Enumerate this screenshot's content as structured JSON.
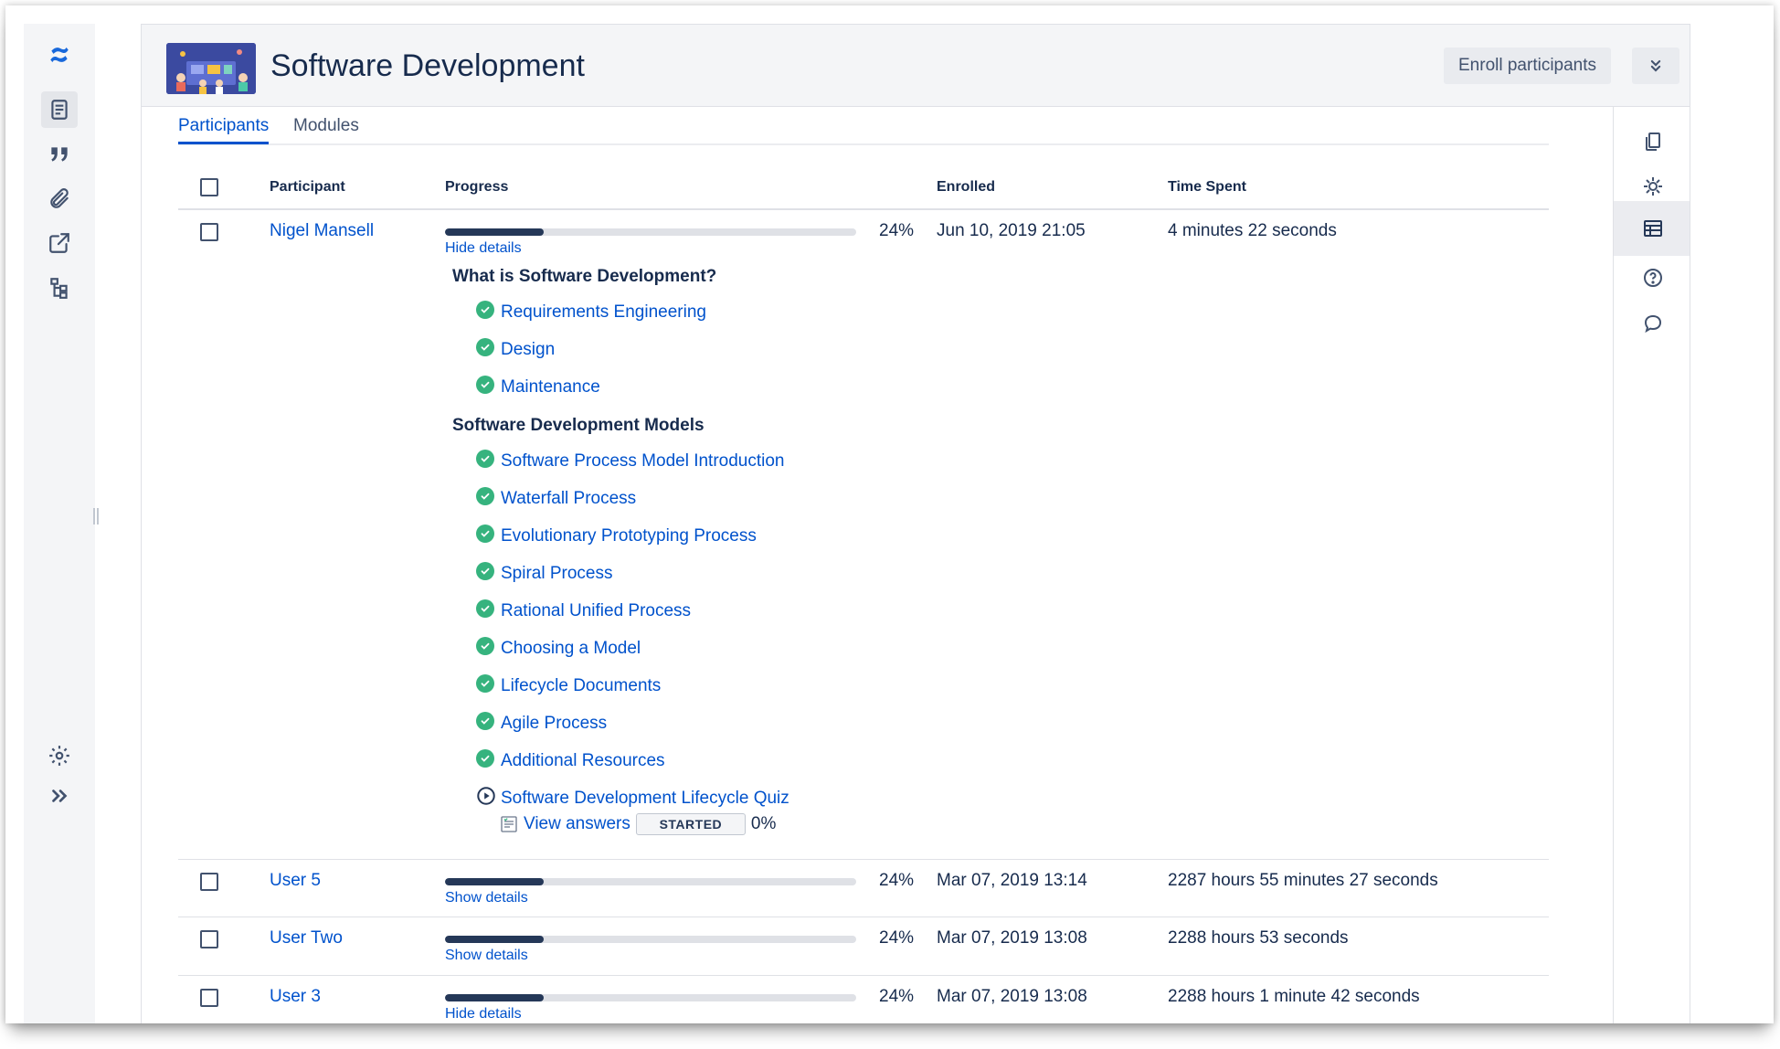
{
  "header": {
    "title": "Software Development",
    "enroll_label": "Enroll participants"
  },
  "tabs": [
    {
      "label": "Participants",
      "active": true
    },
    {
      "label": "Modules",
      "active": false
    }
  ],
  "table": {
    "columns": {
      "participant": "Participant",
      "progress": "Progress",
      "enrolled": "Enrolled",
      "time_spent": "Time Spent"
    },
    "rows": [
      {
        "name": "Nigel Mansell",
        "progress": 0.24,
        "percent": "24%",
        "details_label": "Hide details",
        "enrolled": "Jun 10, 2019 21:05",
        "time_spent": "4 minutes 22 seconds"
      },
      {
        "name": "User 5",
        "progress": 0.24,
        "percent": "24%",
        "details_label": "Show details",
        "enrolled": "Mar 07, 2019 13:14",
        "time_spent": "2287 hours 55 minutes 27 seconds"
      },
      {
        "name": "User Two",
        "progress": 0.24,
        "percent": "24%",
        "details_label": "Show details",
        "enrolled": "Mar 07, 2019 13:08",
        "time_spent": "2288 hours 53 seconds"
      },
      {
        "name": "User 3",
        "progress": 0.24,
        "percent": "24%",
        "details_label": "Hide details",
        "enrolled": "Mar 07, 2019 13:08",
        "time_spent": "2288 hours 1 minute 42 seconds"
      }
    ]
  },
  "details": {
    "sections": [
      {
        "title": "What is Software Development?",
        "lessons": [
          "Requirements Engineering",
          "Design",
          "Maintenance"
        ]
      },
      {
        "title": "Software Development Models",
        "lessons": [
          "Software Process Model Introduction",
          "Waterfall Process",
          "Evolutionary Prototyping Process",
          "Spiral Process",
          "Rational Unified Process",
          "Choosing a Model",
          "Lifecycle Documents",
          "Agile Process",
          "Additional Resources"
        ]
      }
    ],
    "quiz": {
      "title": "Software Development Lifecycle Quiz",
      "view_answers": "View answers",
      "status": "STARTED",
      "score": "0%"
    }
  },
  "icons": {
    "sidebar": [
      "confluence-logo-icon",
      "page-icon",
      "quote-icon",
      "attachment-icon",
      "share-icon",
      "page-tree-icon",
      "settings-icon",
      "expand-icon"
    ],
    "rail": [
      "copy-icon",
      "gear-icon",
      "table-icon",
      "help-icon",
      "comment-icon"
    ]
  },
  "colors": {
    "link": "#0052cc",
    "complete": "#36b37e",
    "progress_fill": "#253858"
  }
}
